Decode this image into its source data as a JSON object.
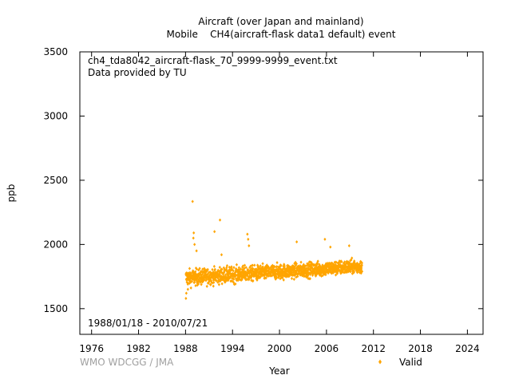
{
  "chart_data": {
    "type": "scatter",
    "title_line1": "Aircraft (over Japan and mainland)",
    "title_line2": "Mobile    CH4(aircraft-flask data1 default) event",
    "annotation_file": "ch4_tda8042_aircraft-flask_70_9999-9999_event.txt",
    "annotation_provider": "Data provided by TU",
    "date_range": "1988/01/18 - 2010/07/21",
    "credit": "WMO WDCGG / JMA",
    "xlabel": "Year",
    "ylabel": "ppb",
    "xlim": [
      1974.5,
      2026
    ],
    "ylim": [
      1300,
      3500
    ],
    "xticks": [
      1976,
      1982,
      1988,
      1994,
      2000,
      2006,
      2012,
      2018,
      2024
    ],
    "yticks": [
      1500,
      2000,
      2500,
      3000,
      3500
    ],
    "grid": false,
    "legend_position": "bottom-right",
    "series": [
      {
        "name": "Valid",
        "color": "#ffa500",
        "band": {
          "x_start": 1988.05,
          "x_end": 2010.55,
          "baseline_start": 1740,
          "baseline_end": 1830,
          "spread_start": 70,
          "spread_end": 60
        },
        "outliers": [
          [
            1988.05,
            1580
          ],
          [
            1988.1,
            1620
          ],
          [
            1988.3,
            1650
          ],
          [
            1988.9,
            2335
          ],
          [
            1989.0,
            2050
          ],
          [
            1989.05,
            2090
          ],
          [
            1989.15,
            2000
          ],
          [
            1989.4,
            1950
          ],
          [
            1991.7,
            2100
          ],
          [
            1992.4,
            2190
          ],
          [
            1992.6,
            1920
          ],
          [
            1995.9,
            2080
          ],
          [
            1996.0,
            2040
          ],
          [
            1996.1,
            1990
          ],
          [
            2002.2,
            2020
          ],
          [
            2005.8,
            2040
          ],
          [
            2006.5,
            1980
          ],
          [
            2008.9,
            1990
          ]
        ]
      }
    ]
  }
}
